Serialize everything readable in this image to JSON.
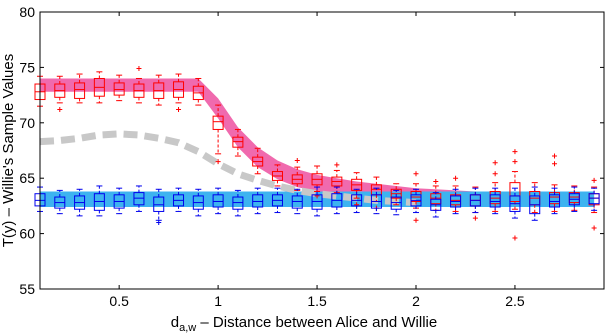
{
  "chart_data": {
    "type": "box",
    "title": "",
    "xlabel": "d",
    "xlabel_subscript": "a,w",
    "xlabel_rest": " – Distance between Alice and Willie",
    "ylabel": "T(y) – Willie's Sample Values",
    "xlim": [
      0.1,
      2.95
    ],
    "ylim": [
      55,
      80
    ],
    "x_ticks": [
      0.5,
      1,
      1.5,
      2,
      2.5
    ],
    "x_tick_labels": [
      "0.5",
      "1",
      "1.5",
      "2",
      "2.5"
    ],
    "y_ticks": [
      55,
      60,
      65,
      70,
      75,
      80
    ],
    "y_tick_labels": [
      "55",
      "60",
      "65",
      "70",
      "75",
      "80"
    ],
    "grid": false,
    "x": [
      0.1,
      0.2,
      0.3,
      0.4,
      0.5,
      0.6,
      0.7,
      0.8,
      0.9,
      1.0,
      1.1,
      1.2,
      1.3,
      1.4,
      1.5,
      1.6,
      1.7,
      1.8,
      1.9,
      2.0,
      2.1,
      2.2,
      2.3,
      2.4,
      2.5,
      2.6,
      2.7,
      2.8,
      2.9
    ],
    "bands": [
      {
        "color": "#f06aae",
        "upper": [
          74.0,
          74.0,
          74.0,
          74.0,
          74.0,
          74.0,
          74.0,
          74.0,
          74.0,
          72.2,
          69.6,
          67.8,
          66.6,
          65.8,
          65.3,
          65.0,
          64.7,
          64.5,
          64.3,
          64.1,
          64.0,
          63.9,
          63.8,
          63.7,
          63.7,
          63.6,
          63.6,
          63.6,
          63.6
        ],
        "lower": [
          72.8,
          72.8,
          72.8,
          72.8,
          72.8,
          72.8,
          72.8,
          72.8,
          72.8,
          70.4,
          67.8,
          66.0,
          64.9,
          64.2,
          63.8,
          63.5,
          63.3,
          63.1,
          62.9,
          62.8,
          62.7,
          62.6,
          62.6,
          62.5,
          62.5,
          62.5,
          62.5,
          62.5,
          62.5
        ]
      },
      {
        "color": "#3db3f0",
        "upper": [
          63.8,
          63.8,
          63.8,
          63.8,
          63.8,
          63.8,
          63.8,
          63.8,
          63.8,
          63.8,
          63.8,
          63.8,
          63.8,
          63.8,
          63.8,
          63.8,
          63.8,
          63.8,
          63.8,
          63.8,
          63.8,
          63.8,
          63.8,
          63.8,
          63.8,
          63.8,
          63.8,
          63.8,
          63.8
        ],
        "lower": [
          62.4,
          62.4,
          62.4,
          62.4,
          62.4,
          62.4,
          62.4,
          62.4,
          62.4,
          62.4,
          62.4,
          62.4,
          62.4,
          62.4,
          62.4,
          62.4,
          62.4,
          62.4,
          62.4,
          62.4,
          62.4,
          62.4,
          62.4,
          62.4,
          62.4,
          62.4,
          62.4,
          62.4,
          62.4
        ]
      }
    ],
    "dashed_line": {
      "color": "#c8c8c8",
      "points": [
        [
          0.1,
          68.3
        ],
        [
          0.2,
          68.4
        ],
        [
          0.3,
          68.6
        ],
        [
          0.4,
          68.9
        ],
        [
          0.5,
          69.0
        ],
        [
          0.6,
          68.9
        ],
        [
          0.7,
          68.6
        ],
        [
          0.8,
          68.2
        ],
        [
          0.9,
          67.4
        ],
        [
          1.0,
          66.3
        ],
        [
          1.1,
          65.4
        ],
        [
          1.2,
          64.8
        ],
        [
          1.3,
          64.3
        ],
        [
          1.4,
          63.9
        ],
        [
          1.5,
          63.6
        ],
        [
          1.6,
          63.4
        ],
        [
          1.7,
          63.2
        ],
        [
          1.8,
          63.0
        ],
        [
          1.9,
          62.9
        ],
        [
          2.0,
          62.8
        ]
      ]
    },
    "box_series": [
      {
        "color": "#ff0000",
        "boxes": [
          {
            "x": 0.1,
            "whislo": 71.5,
            "q1": 72.1,
            "med": 72.8,
            "q3": 73.5,
            "whishi": 74.2,
            "fliers": []
          },
          {
            "x": 0.2,
            "whislo": 71.8,
            "q1": 72.3,
            "med": 72.9,
            "q3": 73.5,
            "whishi": 74.2,
            "fliers": [
              71.2
            ]
          },
          {
            "x": 0.3,
            "whislo": 71.8,
            "q1": 72.2,
            "med": 73.0,
            "q3": 73.6,
            "whishi": 74.4,
            "fliers": []
          },
          {
            "x": 0.4,
            "whislo": 71.8,
            "q1": 72.4,
            "med": 73.2,
            "q3": 74.0,
            "whishi": 74.6,
            "fliers": []
          },
          {
            "x": 0.5,
            "whislo": 72.0,
            "q1": 72.5,
            "med": 73.0,
            "q3": 73.6,
            "whishi": 74.3,
            "fliers": []
          },
          {
            "x": 0.6,
            "whislo": 71.8,
            "q1": 72.3,
            "med": 72.9,
            "q3": 73.5,
            "whishi": 74.0,
            "fliers": [
              74.9
            ]
          },
          {
            "x": 0.7,
            "whislo": 71.6,
            "q1": 72.2,
            "med": 72.9,
            "q3": 73.6,
            "whishi": 74.3,
            "fliers": []
          },
          {
            "x": 0.8,
            "whislo": 71.8,
            "q1": 72.3,
            "med": 73.0,
            "q3": 73.7,
            "whishi": 74.4,
            "fliers": [
              71.2
            ]
          },
          {
            "x": 0.9,
            "whislo": 71.6,
            "q1": 72.1,
            "med": 72.7,
            "q3": 73.3,
            "whishi": 74.0,
            "fliers": []
          },
          {
            "x": 1.0,
            "whislo": 67.2,
            "q1": 69.4,
            "med": 70.1,
            "q3": 70.6,
            "whishi": 71.6,
            "fliers": [
              66.5
            ]
          },
          {
            "x": 1.1,
            "whislo": 67.0,
            "q1": 67.8,
            "med": 68.3,
            "q3": 68.7,
            "whishi": 69.4,
            "fliers": []
          },
          {
            "x": 1.2,
            "whislo": 65.4,
            "q1": 66.1,
            "med": 66.5,
            "q3": 66.9,
            "whishi": 67.7,
            "fliers": []
          },
          {
            "x": 1.3,
            "whislo": 64.3,
            "q1": 64.8,
            "med": 65.2,
            "q3": 65.6,
            "whishi": 66.2,
            "fliers": []
          },
          {
            "x": 1.4,
            "whislo": 63.9,
            "q1": 64.5,
            "med": 64.9,
            "q3": 65.3,
            "whishi": 66.0,
            "fliers": [
              66.6
            ]
          },
          {
            "x": 1.5,
            "whislo": 63.8,
            "q1": 64.4,
            "med": 64.9,
            "q3": 65.4,
            "whishi": 66.1,
            "fliers": [
              63.4
            ]
          },
          {
            "x": 1.6,
            "whislo": 63.7,
            "q1": 64.3,
            "med": 64.7,
            "q3": 65.1,
            "whishi": 65.7,
            "fliers": [
              66.2
            ]
          },
          {
            "x": 1.7,
            "whislo": 63.2,
            "q1": 63.9,
            "med": 64.4,
            "q3": 64.9,
            "whishi": 65.5,
            "fliers": [
              62.6
            ]
          },
          {
            "x": 1.8,
            "whislo": 62.9,
            "q1": 63.5,
            "med": 64.0,
            "q3": 64.4,
            "whishi": 65.1,
            "fliers": [
              62.3
            ]
          },
          {
            "x": 1.9,
            "whislo": 62.6,
            "q1": 63.2,
            "med": 63.6,
            "q3": 64.0,
            "whishi": 64.5,
            "fliers": []
          },
          {
            "x": 2.0,
            "whislo": 62.3,
            "q1": 62.9,
            "med": 63.3,
            "q3": 63.8,
            "whishi": 64.5,
            "fliers": [
              65.4,
              61.2
            ]
          },
          {
            "x": 2.1,
            "whislo": 62.1,
            "q1": 62.7,
            "med": 63.2,
            "q3": 63.6,
            "whishi": 64.3,
            "fliers": [
              64.7
            ]
          },
          {
            "x": 2.2,
            "whislo": 62.0,
            "q1": 62.6,
            "med": 63.0,
            "q3": 63.5,
            "whishi": 64.3,
            "fliers": [
              65.0
            ]
          },
          {
            "x": 2.3,
            "whislo": 61.9,
            "q1": 62.5,
            "med": 63.0,
            "q3": 63.5,
            "whishi": 64.2,
            "fliers": [
              61.4
            ]
          },
          {
            "x": 2.4,
            "whislo": 62.0,
            "q1": 62.7,
            "med": 63.2,
            "q3": 63.8,
            "whishi": 64.6,
            "fliers": [
              65.4,
              66.4
            ]
          },
          {
            "x": 2.5,
            "whislo": 62.2,
            "q1": 62.9,
            "med": 63.4,
            "q3": 64.6,
            "whishi": 65.6,
            "fliers": [
              66.5,
              67.4,
              59.6
            ]
          },
          {
            "x": 2.6,
            "whislo": 61.9,
            "q1": 62.6,
            "med": 63.2,
            "q3": 63.8,
            "whishi": 64.6,
            "fliers": []
          },
          {
            "x": 2.7,
            "whislo": 62.0,
            "q1": 62.7,
            "med": 63.3,
            "q3": 63.7,
            "whishi": 64.4,
            "fliers": [
              66.3,
              67.0
            ]
          },
          {
            "x": 2.8,
            "whislo": 62.1,
            "q1": 62.8,
            "med": 63.3,
            "q3": 63.7,
            "whishi": 64.3,
            "fliers": []
          },
          {
            "x": 2.9,
            "whislo": 61.9,
            "q1": 62.6,
            "med": 63.2,
            "q3": 63.6,
            "whishi": 64.2,
            "fliers": [
              60.5,
              64.8
            ]
          }
        ]
      },
      {
        "color": "#0000ee",
        "boxes": [
          {
            "x": 0.1,
            "whislo": 62.0,
            "q1": 62.5,
            "med": 63.0,
            "q3": 63.6,
            "whishi": 64.2,
            "fliers": []
          },
          {
            "x": 0.2,
            "whislo": 61.8,
            "q1": 62.3,
            "med": 62.8,
            "q3": 63.3,
            "whishi": 63.9,
            "fliers": []
          },
          {
            "x": 0.3,
            "whislo": 61.6,
            "q1": 62.2,
            "med": 62.8,
            "q3": 63.4,
            "whishi": 64.0,
            "fliers": []
          },
          {
            "x": 0.4,
            "whislo": 61.6,
            "q1": 62.1,
            "med": 62.9,
            "q3": 63.6,
            "whishi": 64.3,
            "fliers": []
          },
          {
            "x": 0.5,
            "whislo": 61.8,
            "q1": 62.3,
            "med": 62.9,
            "q3": 63.5,
            "whishi": 64.1,
            "fliers": []
          },
          {
            "x": 0.6,
            "whislo": 62.0,
            "q1": 62.6,
            "med": 63.2,
            "q3": 63.7,
            "whishi": 64.3,
            "fliers": []
          },
          {
            "x": 0.7,
            "whislo": 61.2,
            "q1": 62.0,
            "med": 62.6,
            "q3": 63.3,
            "whishi": 64.0,
            "fliers": [
              61.0
            ]
          },
          {
            "x": 0.8,
            "whislo": 62.0,
            "q1": 62.5,
            "med": 63.0,
            "q3": 63.5,
            "whishi": 64.1,
            "fliers": []
          },
          {
            "x": 0.9,
            "whislo": 61.6,
            "q1": 62.2,
            "med": 62.8,
            "q3": 63.4,
            "whishi": 64.0,
            "fliers": []
          },
          {
            "x": 1.0,
            "whislo": 61.8,
            "q1": 62.4,
            "med": 62.9,
            "q3": 63.5,
            "whishi": 64.1,
            "fliers": []
          },
          {
            "x": 1.1,
            "whislo": 61.6,
            "q1": 62.2,
            "med": 62.8,
            "q3": 63.3,
            "whishi": 63.9,
            "fliers": []
          },
          {
            "x": 1.2,
            "whislo": 61.8,
            "q1": 62.4,
            "med": 62.9,
            "q3": 63.5,
            "whishi": 64.1,
            "fliers": []
          },
          {
            "x": 1.3,
            "whislo": 61.9,
            "q1": 62.5,
            "med": 63.0,
            "q3": 63.5,
            "whishi": 64.1,
            "fliers": []
          },
          {
            "x": 1.4,
            "whislo": 61.8,
            "q1": 62.3,
            "med": 62.9,
            "q3": 63.4,
            "whishi": 64.0,
            "fliers": []
          },
          {
            "x": 1.5,
            "whislo": 61.6,
            "q1": 62.2,
            "med": 62.9,
            "q3": 63.5,
            "whishi": 64.2,
            "fliers": []
          },
          {
            "x": 1.6,
            "whislo": 61.8,
            "q1": 62.4,
            "med": 63.0,
            "q3": 63.6,
            "whishi": 64.2,
            "fliers": []
          },
          {
            "x": 1.7,
            "whislo": 61.9,
            "q1": 62.5,
            "med": 63.0,
            "q3": 63.5,
            "whishi": 64.0,
            "fliers": []
          },
          {
            "x": 1.8,
            "whislo": 61.8,
            "q1": 62.3,
            "med": 62.9,
            "q3": 63.5,
            "whishi": 64.1,
            "fliers": []
          },
          {
            "x": 1.9,
            "whislo": 61.7,
            "q1": 62.2,
            "med": 62.8,
            "q3": 63.3,
            "whishi": 63.9,
            "fliers": []
          },
          {
            "x": 2.0,
            "whislo": 61.9,
            "q1": 62.5,
            "med": 63.0,
            "q3": 63.5,
            "whishi": 64.0,
            "fliers": []
          },
          {
            "x": 2.1,
            "whislo": 61.5,
            "q1": 62.1,
            "med": 62.6,
            "q3": 63.1,
            "whishi": 63.7,
            "fliers": []
          },
          {
            "x": 2.2,
            "whislo": 61.8,
            "q1": 62.4,
            "med": 62.9,
            "q3": 63.4,
            "whishi": 64.0,
            "fliers": []
          },
          {
            "x": 2.3,
            "whislo": 61.9,
            "q1": 62.5,
            "med": 63.0,
            "q3": 63.5,
            "whishi": 64.1,
            "fliers": []
          },
          {
            "x": 2.4,
            "whislo": 61.8,
            "q1": 62.4,
            "med": 62.9,
            "q3": 63.5,
            "whishi": 64.1,
            "fliers": []
          },
          {
            "x": 2.5,
            "whislo": 61.4,
            "q1": 62.0,
            "med": 62.7,
            "q3": 63.4,
            "whishi": 64.1,
            "fliers": []
          },
          {
            "x": 2.6,
            "whislo": 61.2,
            "q1": 61.8,
            "med": 62.6,
            "q3": 63.4,
            "whishi": 64.2,
            "fliers": []
          },
          {
            "x": 2.7,
            "whislo": 61.8,
            "q1": 62.4,
            "med": 62.9,
            "q3": 63.5,
            "whishi": 64.1,
            "fliers": []
          },
          {
            "x": 2.8,
            "whislo": 62.0,
            "q1": 62.6,
            "med": 63.1,
            "q3": 63.6,
            "whishi": 64.2,
            "fliers": []
          },
          {
            "x": 2.9,
            "whislo": 62.1,
            "q1": 62.7,
            "med": 63.2,
            "q3": 63.6,
            "whishi": 64.1,
            "fliers": []
          }
        ]
      }
    ]
  }
}
